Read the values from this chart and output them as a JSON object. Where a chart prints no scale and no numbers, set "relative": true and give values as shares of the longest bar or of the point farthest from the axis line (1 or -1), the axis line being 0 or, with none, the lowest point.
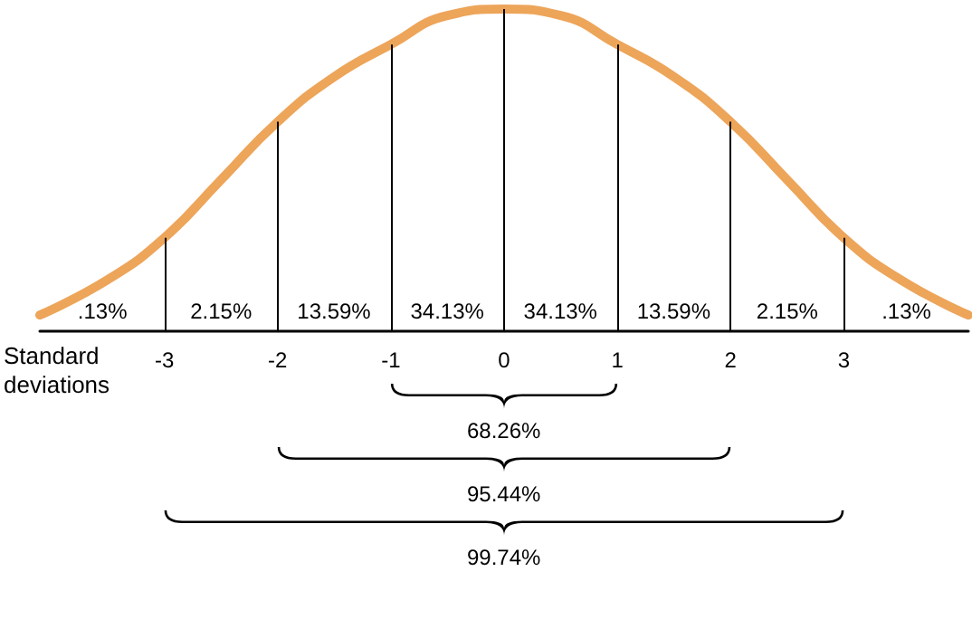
{
  "chart_data": {
    "type": "line",
    "relative": true,
    "xlabel": "Standard deviations",
    "color": "#eda55a",
    "grid": false,
    "marker": "none",
    "line_style": "solid",
    "x": [
      -4.1,
      -3.5,
      -3,
      -2.5,
      -2,
      -1.5,
      -1,
      -0.5,
      0,
      0.5,
      1,
      1.5,
      2,
      2.5,
      3,
      3.5,
      4.1
    ],
    "values": [
      0.05,
      0.16,
      0.29,
      0.47,
      0.65,
      0.79,
      0.89,
      0.98,
      1,
      0.98,
      0.89,
      0.79,
      0.65,
      0.47,
      0.29,
      0.16,
      0.05
    ],
    "xlim": [
      -4.1,
      4.1
    ],
    "xticks": [
      -3,
      -2,
      -1,
      0,
      1,
      2,
      3
    ],
    "ref_lines": [
      {
        "axis": "x",
        "value": -3
      },
      {
        "axis": "x",
        "value": -2
      },
      {
        "axis": "x",
        "value": -1
      },
      {
        "axis": "x",
        "value": 0
      },
      {
        "axis": "x",
        "value": 1
      },
      {
        "axis": "x",
        "value": 2
      },
      {
        "axis": "x",
        "value": 3
      }
    ],
    "annotations": [
      ".13%",
      "2.15%",
      "13.59%",
      "34.13%",
      "34.13%",
      "13.59%",
      "2.15%",
      ".13%",
      "68.26%",
      "95.44%",
      "99.74%"
    ]
  }
}
